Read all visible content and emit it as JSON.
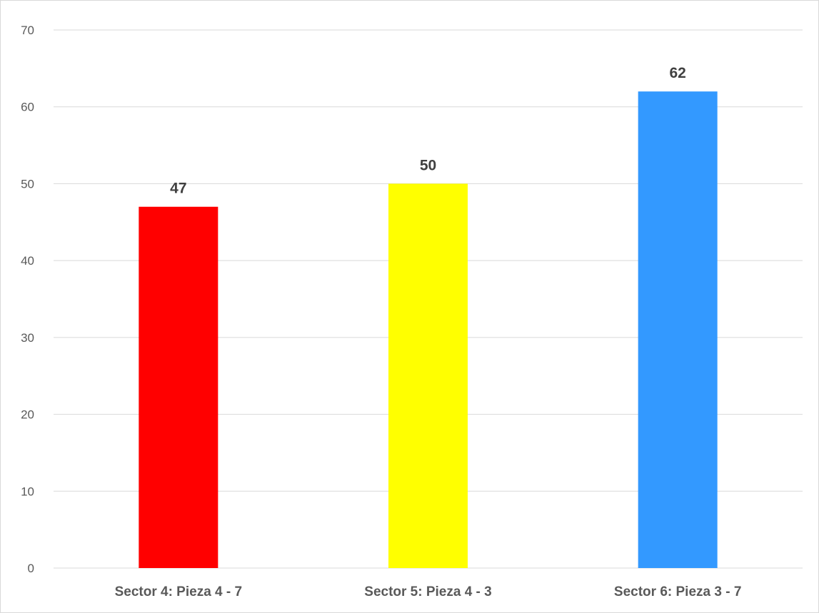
{
  "chart_data": {
    "type": "bar",
    "title": "",
    "xlabel": "",
    "ylabel": "",
    "categories": [
      "Sector 4: Pieza 4 - 7",
      "Sector 5: Pieza 4 - 3",
      "Sector 6: Pieza 3 - 7"
    ],
    "values": [
      47,
      50,
      62
    ],
    "data_labels": [
      "47",
      "50",
      "62"
    ],
    "colors": [
      "#ff0000",
      "#ffff00",
      "#3399ff"
    ],
    "ylim": [
      0,
      70
    ],
    "yticks": [
      0,
      10,
      20,
      30,
      40,
      50,
      60,
      70
    ],
    "ytick_labels": [
      "0",
      "10",
      "20",
      "30",
      "40",
      "50",
      "60",
      "70"
    ],
    "grid": true,
    "legend": "none"
  }
}
